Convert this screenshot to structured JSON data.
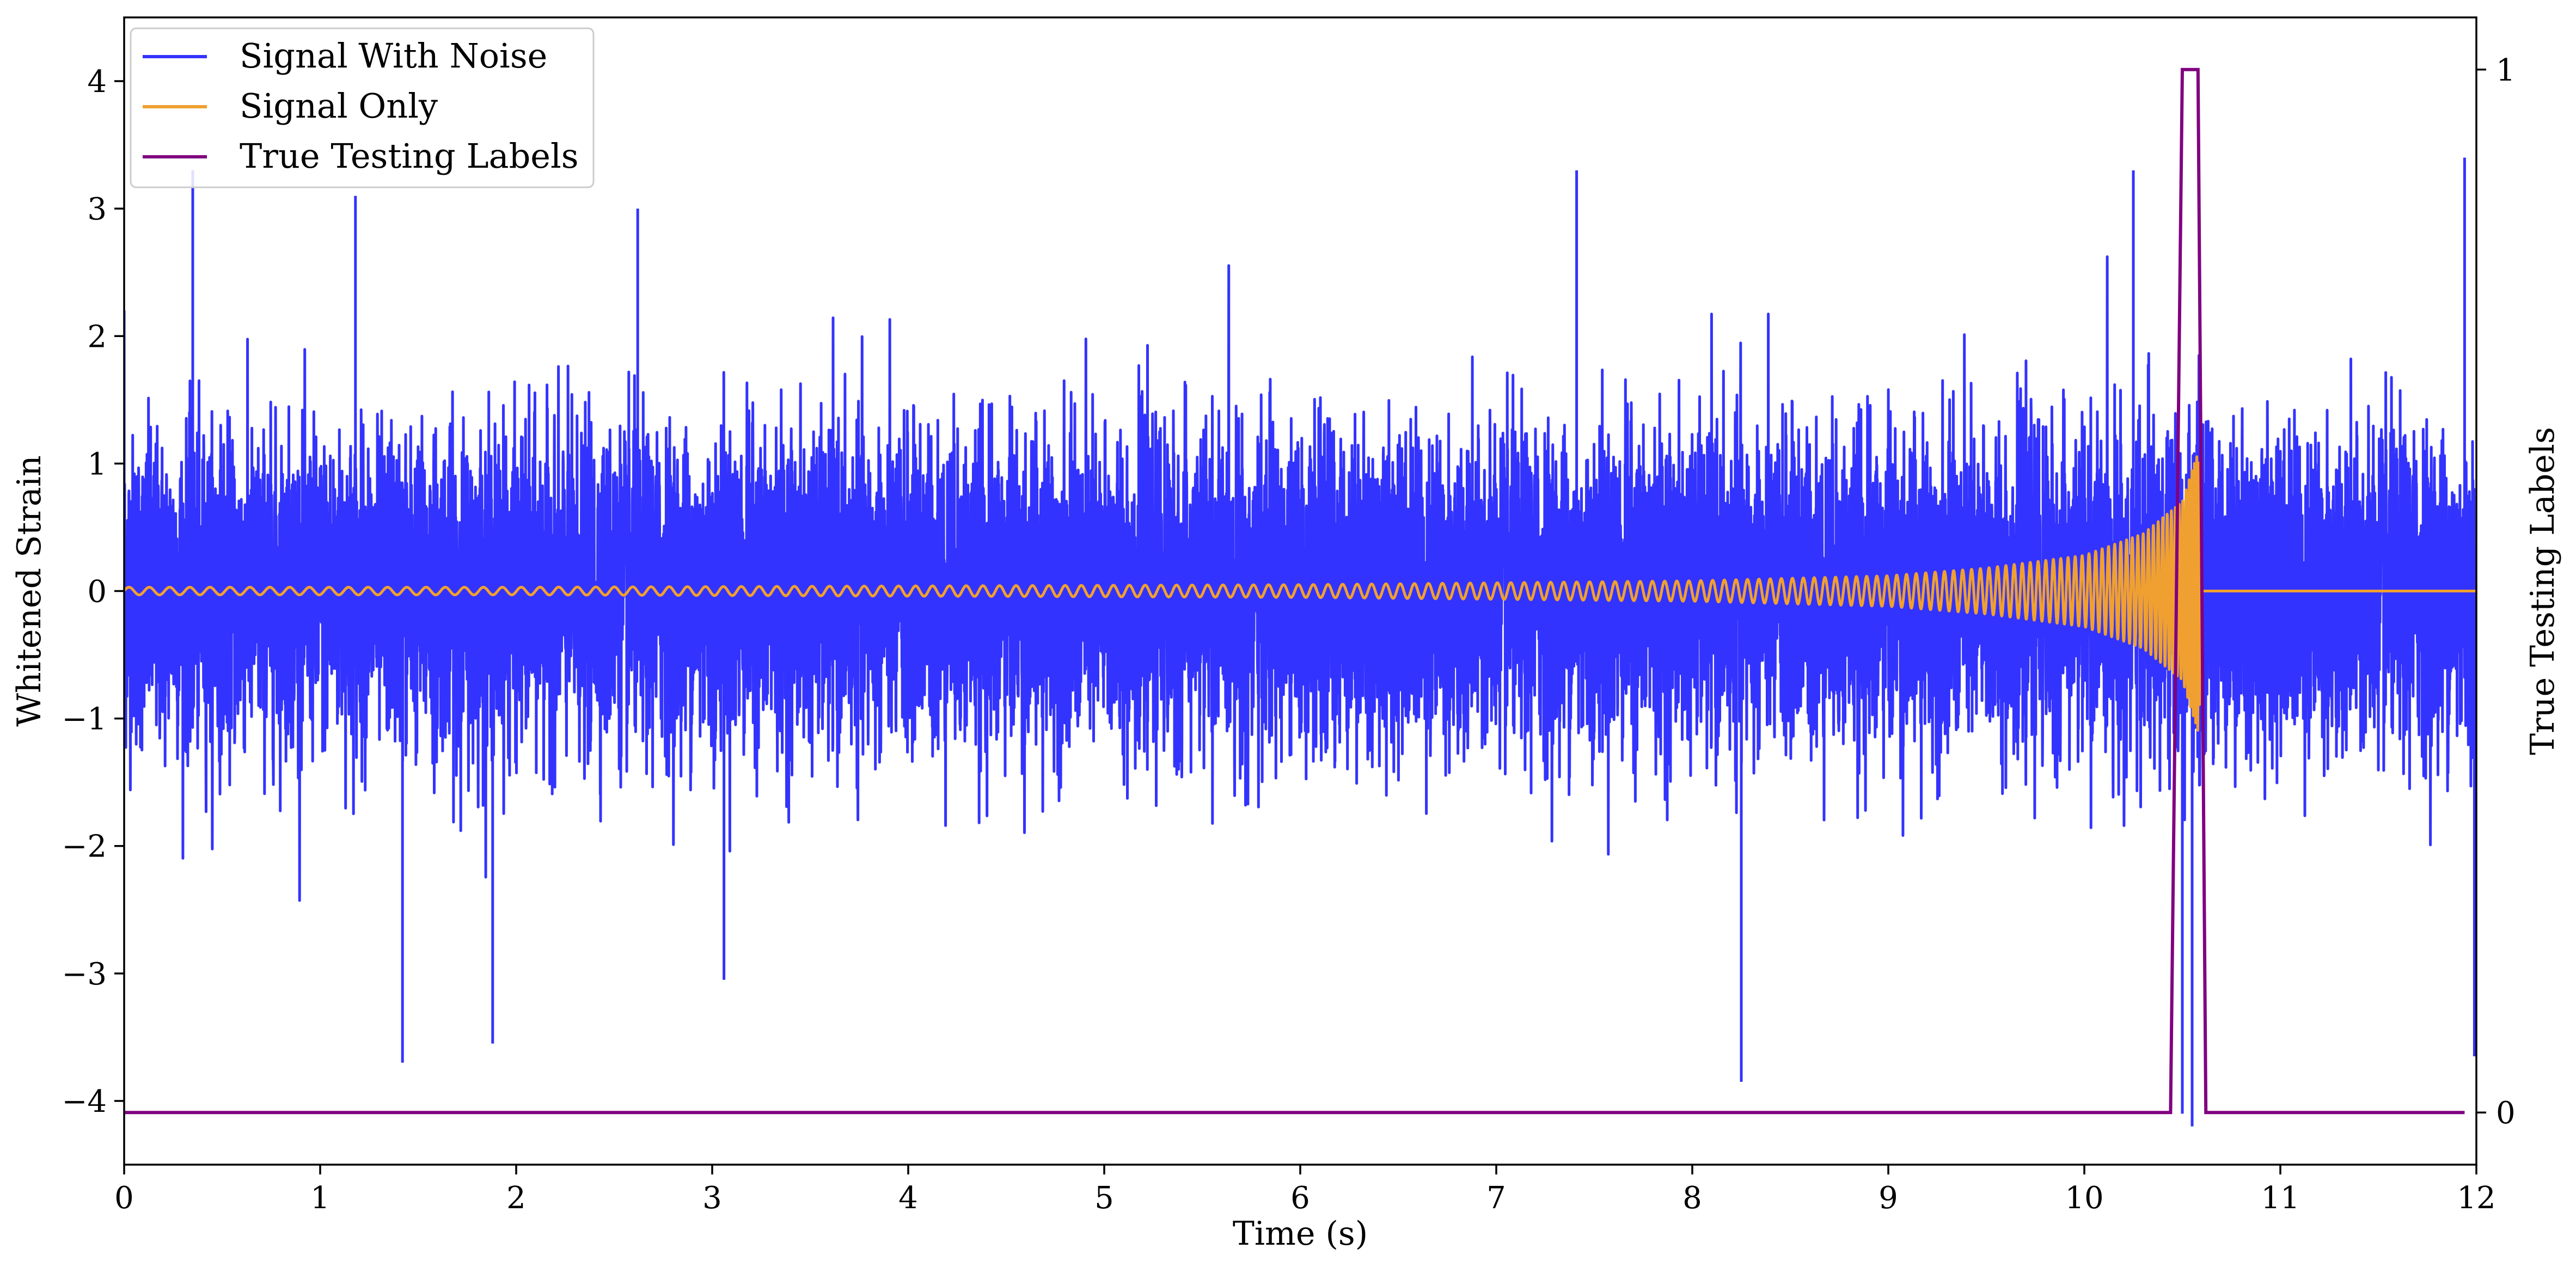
{
  "chart_data": {
    "type": "line",
    "xlabel": "Time (s)",
    "ylabel": "Whitened Strain",
    "y2label": "True Testing Labels",
    "xlim": [
      0,
      12
    ],
    "ylim": [
      -4.5,
      4.5
    ],
    "y2lim": [
      -0.05,
      1.05
    ],
    "xticks": [
      "0",
      "1",
      "2",
      "3",
      "4",
      "5",
      "6",
      "7",
      "8",
      "9",
      "10",
      "11",
      "12"
    ],
    "yticks": [
      "−4",
      "−3",
      "−2",
      "−1",
      "0",
      "1",
      "2",
      "3",
      "4"
    ],
    "y2ticks": [
      "0",
      "1"
    ],
    "grid": false,
    "legend_position": "upper-left",
    "legend": [
      "Signal With Noise",
      "Signal Only",
      "True Testing Labels"
    ],
    "series": [
      {
        "name": "Signal With Noise",
        "color": "#3333ff",
        "axis": "left",
        "description_of_shape": "stationary noise roughly ±1.5 envelope, peaks near ±3.3",
        "x": [
          0,
          0.35,
          1.18,
          1.42,
          1.88,
          2.62,
          3.06,
          7.41,
          8.25,
          10.25,
          10.5,
          10.55,
          11.94,
          11.99
        ],
        "values": [
          2.2,
          3.3,
          3.1,
          -3.7,
          -3.55,
          3.0,
          -3.05,
          3.3,
          -3.85,
          3.3,
          -4.1,
          -4.2,
          3.4,
          -3.65
        ]
      },
      {
        "name": "Signal Only",
        "color": "#f0a030",
        "axis": "left",
        "description_of_shape": "chirp: sinusoid with growing amplitude and frequency, merger near 10.6 s, then flat zero",
        "x": [
          0,
          2,
          4,
          6,
          8,
          9,
          9.5,
          10,
          10.3,
          10.5,
          10.58,
          10.62,
          12
        ],
        "values": [
          0.03,
          0.03,
          0.04,
          0.05,
          0.08,
          0.12,
          0.18,
          0.28,
          0.45,
          0.7,
          1.1,
          0,
          0
        ]
      },
      {
        "name": "True Testing Labels",
        "color": "#800080",
        "axis": "right",
        "x": [
          0,
          10.44,
          10.5,
          10.58,
          10.62,
          11.94
        ],
        "values": [
          0,
          0,
          1,
          1,
          0,
          0
        ]
      }
    ]
  }
}
